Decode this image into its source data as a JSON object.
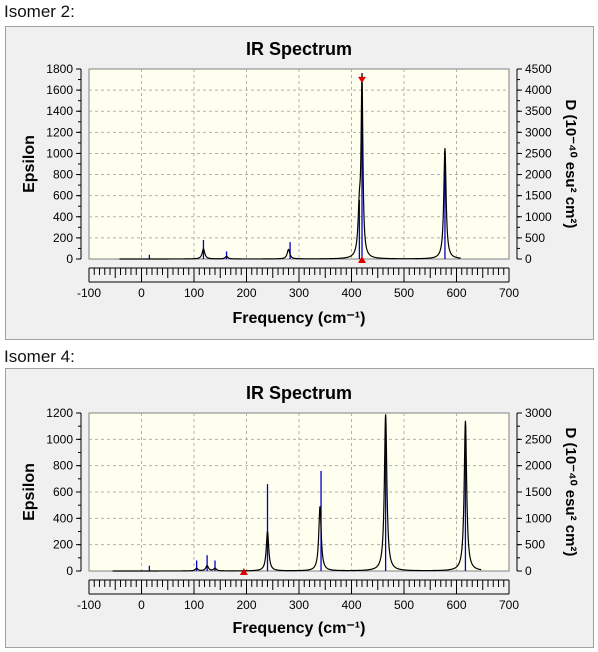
{
  "labels": {
    "isomer2": "Isomer 2:",
    "isomer4": "Isomer 4:"
  },
  "chart_data": [
    {
      "type": "line",
      "title": "IR Spectrum",
      "xlabel": "Frequency (cm⁻¹)",
      "ylabel": "Epsilon",
      "y2label": "D (10⁻⁴⁰ esu² cm²)",
      "xlim": [
        -100,
        700
      ],
      "ylim": [
        0,
        1800
      ],
      "y2lim": [
        0,
        4500
      ],
      "xticks": [
        -100,
        0,
        100,
        200,
        300,
        400,
        500,
        600,
        700
      ],
      "yticks": [
        0,
        200,
        400,
        600,
        800,
        1000,
        1200,
        1400,
        1600,
        1800
      ],
      "y2ticks": [
        0,
        500,
        1000,
        1500,
        2000,
        2500,
        3000,
        3500,
        4000,
        4500
      ],
      "grid": true,
      "curve_color": "#000000",
      "stick_color": "#0000cc",
      "marker_color": "#e00000",
      "marker_x": 420,
      "peaks": [
        {
          "x": 118,
          "y": 95,
          "w": 3
        },
        {
          "x": 162,
          "y": 25,
          "w": 3
        },
        {
          "x": 280,
          "y": 90,
          "w": 3
        },
        {
          "x": 415,
          "y": 420,
          "w": 3
        },
        {
          "x": 420,
          "y": 1650,
          "w": 2
        },
        {
          "x": 578,
          "y": 1050,
          "w": 2.6
        }
      ],
      "sticks": [
        {
          "x": 15,
          "d": 100
        },
        {
          "x": 118,
          "d": 450
        },
        {
          "x": 162,
          "d": 180
        },
        {
          "x": 283,
          "d": 400
        },
        {
          "x": 415,
          "d": 1400
        },
        {
          "x": 420,
          "d": 3750
        },
        {
          "x": 578,
          "d": 2350
        }
      ]
    },
    {
      "type": "line",
      "title": "IR Spectrum",
      "xlabel": "Frequency (cm⁻¹)",
      "ylabel": "Epsilon",
      "y2label": "D (10⁻⁴⁰ esu² cm²)",
      "xlim": [
        -100,
        700
      ],
      "ylim": [
        0,
        1200
      ],
      "y2lim": [
        0,
        3000
      ],
      "xticks": [
        -100,
        0,
        100,
        200,
        300,
        400,
        500,
        600,
        700
      ],
      "yticks": [
        0,
        200,
        400,
        600,
        800,
        1000,
        1200
      ],
      "y2ticks": [
        0,
        500,
        1000,
        1500,
        2000,
        2500,
        3000
      ],
      "grid": true,
      "curve_color": "#000000",
      "stick_color": "#0000cc",
      "marker_color": "#e00000",
      "marker_x": 195,
      "peaks": [
        {
          "x": 105,
          "y": 20,
          "w": 3
        },
        {
          "x": 125,
          "y": 40,
          "w": 3
        },
        {
          "x": 140,
          "y": 20,
          "w": 3
        },
        {
          "x": 240,
          "y": 300,
          "w": 2.8
        },
        {
          "x": 340,
          "y": 490,
          "w": 2.8
        },
        {
          "x": 465,
          "y": 1190,
          "w": 2.8
        },
        {
          "x": 617,
          "y": 1140,
          "w": 2.8
        }
      ],
      "sticks": [
        {
          "x": 15,
          "d": 100
        },
        {
          "x": 105,
          "d": 200
        },
        {
          "x": 125,
          "d": 300
        },
        {
          "x": 140,
          "d": 200
        },
        {
          "x": 240,
          "d": 1650
        },
        {
          "x": 342,
          "d": 1900
        },
        {
          "x": 465,
          "d": 2900
        },
        {
          "x": 617,
          "d": 2750
        }
      ]
    }
  ]
}
